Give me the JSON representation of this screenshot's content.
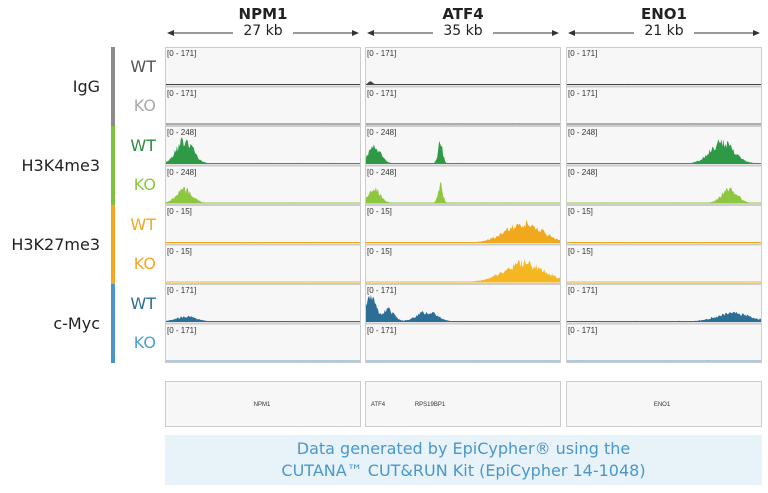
{
  "chart_data": {
    "type": "area",
    "loci": [
      {
        "name": "NPM1",
        "size_label": "27 kb",
        "length_kb": 27,
        "genes": [
          {
            "name": "NPM1"
          }
        ]
      },
      {
        "name": "ATF4",
        "size_label": "35 kb",
        "length_kb": 35,
        "genes": [
          {
            "name": "ATF4"
          },
          {
            "name": "RPS19BP1"
          }
        ]
      },
      {
        "name": "ENO1",
        "size_label": "21 kb",
        "length_kb": 21,
        "genes": [
          {
            "name": "ENO1"
          }
        ]
      }
    ],
    "groups": [
      {
        "name": "IgG",
        "color": "#8c8c8c",
        "tracks": [
          {
            "condition": "WT",
            "label_color": "#555555",
            "fill": "#444444",
            "range": "[0 - 171]",
            "max": 171,
            "peaks": [
              [],
              [
                {
                  "kb": 0.8,
                  "width": 0.6,
                  "height": 18
                }
              ],
              []
            ]
          },
          {
            "condition": "KO",
            "label_color": "#a8a8a8",
            "fill": "#666666",
            "range": "[0 - 171]",
            "max": 171,
            "peaks": [
              [],
              [],
              []
            ]
          }
        ]
      },
      {
        "name": "H3K4me3",
        "color": "#7dc13c",
        "tracks": [
          {
            "condition": "WT",
            "label_color": "#2e8b3e",
            "fill": "#2e9a45",
            "range": "[0 - 248]",
            "max": 248,
            "peaks": [
              [
                {
                  "kb": 2.6,
                  "width": 1.6,
                  "height": 205
                }
              ],
              [
                {
                  "kb": 1.5,
                  "width": 1.6,
                  "height": 150
                },
                {
                  "kb": 13.4,
                  "width": 0.6,
                  "height": 185
                }
              ],
              [
                {
                  "kb": 16.8,
                  "width": 1.8,
                  "height": 185
                }
              ]
            ]
          },
          {
            "condition": "KO",
            "label_color": "#8dc63f",
            "fill": "#8dc63f",
            "range": "[0 - 248]",
            "max": 248,
            "peaks": [
              [
                {
                  "kb": 2.6,
                  "width": 1.5,
                  "height": 120
                }
              ],
              [
                {
                  "kb": 1.5,
                  "width": 1.5,
                  "height": 130
                },
                {
                  "kb": 13.4,
                  "width": 0.6,
                  "height": 160
                }
              ],
              [
                {
                  "kb": 17.6,
                  "width": 1.2,
                  "height": 120
                }
              ]
            ]
          }
        ]
      },
      {
        "name": "H3K27me3",
        "color": "#f5a623",
        "tracks": [
          {
            "condition": "WT",
            "label_color": "#f5a623",
            "fill": "#f0a81c",
            "range": "[0 - 15]",
            "max": 15,
            "peaks": [
              [],
              [
                {
                  "kb": 28.5,
                  "width": 4.5,
                  "height": 10.5
                }
              ],
              []
            ]
          },
          {
            "condition": "KO",
            "label_color": "#f5a623",
            "fill": "#f5b622",
            "range": "[0 - 15]",
            "max": 15,
            "peaks": [
              [],
              [
                {
                  "kb": 28.5,
                  "width": 5,
                  "height": 10
                }
              ],
              []
            ]
          }
        ]
      },
      {
        "name": "c-Myc",
        "color": "#4a96c8",
        "tracks": [
          {
            "condition": "WT",
            "label_color": "#2c6e96",
            "fill": "#2c6e96",
            "range": "[0 - 171]",
            "max": 171,
            "peaks": [
              [
                {
                  "kb": 2.8,
                  "width": 2,
                  "height": 30
                }
              ],
              [
                {
                  "kb": 0.9,
                  "width": 1.2,
                  "height": 150
                },
                {
                  "kb": 4,
                  "width": 1.5,
                  "height": 70
                },
                {
                  "kb": 11,
                  "width": 2.5,
                  "height": 60
                }
              ],
              [
                {
                  "kb": 18,
                  "width": 2.5,
                  "height": 50
                }
              ]
            ]
          },
          {
            "condition": "KO",
            "label_color": "#4aa0d0",
            "fill": "#5ba4cf",
            "range": "[0 - 171]",
            "max": 171,
            "peaks": [
              [],
              [],
              []
            ]
          }
        ]
      }
    ]
  },
  "caption": {
    "line1": "Data generated by EpiCypher® using the",
    "line2": "CUTANA™ CUT&RUN Kit (EpiCypher 14-1048)"
  }
}
